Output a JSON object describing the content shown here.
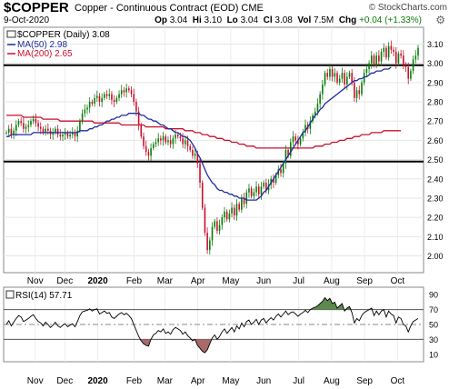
{
  "header": {
    "symbol": "$COPPER",
    "description": "Copper - Continuous Contract (EOD)",
    "exchange": "CME",
    "date": "9-Oct-2020",
    "brand": "© StockCharts.com",
    "open_label": "Op",
    "open": "3.04",
    "high_label": "Hi",
    "high": "3.10",
    "low_label": "Lo",
    "low": "3.04",
    "close_label": "Cl",
    "close": "3.08",
    "vol_label": "Vol",
    "vol": "7.5M",
    "chg_label": "Chg",
    "chg": "+0.04 (+1.33%)",
    "up_color": "#0a7d0a",
    "down_color": "#c8102e",
    "gear_icon": "gear-icon"
  },
  "legend": {
    "price": "$COPPER (Daily) 3.08",
    "ma50": "MA(50) 2.98",
    "ma200": "MA(200) 2.65"
  },
  "rsi_legend": "RSI(14) 57.71",
  "chart_data": [
    {
      "type": "candlestick",
      "series_name": "$COPPER (Daily)",
      "x_labels": [
        "Nov",
        "Dec",
        "2020",
        "Feb",
        "Mar",
        "Apr",
        "May",
        "Jun",
        "Jul",
        "Aug",
        "Sep",
        "Oct"
      ],
      "y_ticks": [
        2.0,
        2.1,
        2.2,
        2.3,
        2.4,
        2.5,
        2.6,
        2.7,
        2.8,
        2.9,
        3.0,
        3.1
      ],
      "ylim": [
        1.96,
        3.14
      ],
      "horizontal_lines": [
        2.49,
        2.99
      ],
      "close": [
        2.64,
        2.66,
        2.63,
        2.65,
        2.68,
        2.7,
        2.69,
        2.66,
        2.67,
        2.68,
        2.7,
        2.71,
        2.69,
        2.67,
        2.66,
        2.64,
        2.66,
        2.65,
        2.63,
        2.64,
        2.66,
        2.63,
        2.62,
        2.63,
        2.64,
        2.62,
        2.63,
        2.64,
        2.62,
        2.65,
        2.7,
        2.74,
        2.76,
        2.77,
        2.8,
        2.79,
        2.82,
        2.83,
        2.8,
        2.82,
        2.84,
        2.83,
        2.84,
        2.81,
        2.8,
        2.82,
        2.84,
        2.86,
        2.85,
        2.87,
        2.86,
        2.84,
        2.8,
        2.75,
        2.68,
        2.62,
        2.57,
        2.54,
        2.52,
        2.56,
        2.58,
        2.59,
        2.61,
        2.6,
        2.62,
        2.59,
        2.6,
        2.58,
        2.61,
        2.63,
        2.62,
        2.61,
        2.58,
        2.6,
        2.57,
        2.55,
        2.52,
        2.53,
        2.48,
        2.38,
        2.25,
        2.12,
        2.03,
        2.08,
        2.15,
        2.18,
        2.13,
        2.16,
        2.2,
        2.23,
        2.19,
        2.22,
        2.25,
        2.21,
        2.27,
        2.24,
        2.3,
        2.27,
        2.33,
        2.35,
        2.31,
        2.33,
        2.36,
        2.32,
        2.36,
        2.38,
        2.34,
        2.37,
        2.4,
        2.38,
        2.42,
        2.45,
        2.43,
        2.48,
        2.55,
        2.52,
        2.59,
        2.62,
        2.6,
        2.58,
        2.61,
        2.64,
        2.68,
        2.66,
        2.7,
        2.73,
        2.75,
        2.79,
        2.84,
        2.89,
        2.95,
        2.93,
        2.97,
        2.93,
        2.95,
        2.9,
        2.92,
        2.95,
        2.89,
        2.93,
        2.95,
        2.9,
        2.82,
        2.86,
        2.84,
        2.9,
        2.95,
        2.97,
        3.0,
        3.04,
        2.99,
        3.04,
        3.01,
        3.06,
        3.08,
        3.03,
        3.09,
        3.07,
        3.06,
        3.0,
        3.05,
        3.04,
        2.99,
        2.98,
        2.92,
        2.96,
        3.02,
        3.04,
        3.08
      ],
      "ma50": [
        2.62,
        2.62,
        2.63,
        2.63,
        2.63,
        2.63,
        2.63,
        2.63,
        2.63,
        2.63,
        2.63,
        2.64,
        2.64,
        2.64,
        2.64,
        2.64,
        2.64,
        2.64,
        2.64,
        2.64,
        2.64,
        2.64,
        2.64,
        2.64,
        2.64,
        2.64,
        2.64,
        2.64,
        2.64,
        2.64,
        2.65,
        2.65,
        2.65,
        2.65,
        2.66,
        2.66,
        2.67,
        2.67,
        2.68,
        2.68,
        2.69,
        2.7,
        2.7,
        2.71,
        2.71,
        2.72,
        2.72,
        2.73,
        2.73,
        2.73,
        2.74,
        2.74,
        2.74,
        2.74,
        2.74,
        2.73,
        2.73,
        2.72,
        2.71,
        2.71,
        2.7,
        2.7,
        2.69,
        2.68,
        2.68,
        2.67,
        2.66,
        2.66,
        2.65,
        2.64,
        2.64,
        2.63,
        2.62,
        2.62,
        2.61,
        2.6,
        2.58,
        2.56,
        2.53,
        2.51,
        2.48,
        2.45,
        2.42,
        2.4,
        2.38,
        2.37,
        2.35,
        2.34,
        2.34,
        2.33,
        2.33,
        2.32,
        2.32,
        2.31,
        2.31,
        2.3,
        2.3,
        2.3,
        2.29,
        2.29,
        2.29,
        2.29,
        2.29,
        2.3,
        2.31,
        2.33,
        2.34,
        2.36,
        2.38,
        2.4,
        2.42,
        2.44,
        2.46,
        2.48,
        2.5,
        2.52,
        2.54,
        2.56,
        2.58,
        2.6,
        2.62,
        2.64,
        2.65,
        2.67,
        2.69,
        2.71,
        2.73,
        2.74,
        2.76,
        2.77,
        2.79,
        2.8,
        2.81,
        2.82,
        2.83,
        2.84,
        2.85,
        2.86,
        2.87,
        2.88,
        2.89,
        2.9,
        2.91,
        2.91,
        2.92,
        2.92,
        2.93,
        2.93,
        2.94,
        2.95,
        2.95,
        2.96,
        2.96,
        2.96,
        2.97,
        2.97,
        2.97,
        2.98
      ],
      "ma200": [
        2.73,
        2.73,
        2.73,
        2.73,
        2.73,
        2.73,
        2.73,
        2.72,
        2.72,
        2.72,
        2.72,
        2.72,
        2.72,
        2.72,
        2.72,
        2.71,
        2.71,
        2.71,
        2.71,
        2.71,
        2.71,
        2.71,
        2.7,
        2.7,
        2.7,
        2.7,
        2.7,
        2.7,
        2.7,
        2.7,
        2.7,
        2.7,
        2.7,
        2.7,
        2.7,
        2.7,
        2.69,
        2.69,
        2.69,
        2.69,
        2.69,
        2.69,
        2.69,
        2.69,
        2.69,
        2.69,
        2.69,
        2.68,
        2.68,
        2.68,
        2.68,
        2.68,
        2.68,
        2.68,
        2.68,
        2.68,
        2.68,
        2.67,
        2.67,
        2.67,
        2.67,
        2.67,
        2.67,
        2.67,
        2.67,
        2.66,
        2.66,
        2.66,
        2.66,
        2.66,
        2.66,
        2.66,
        2.66,
        2.65,
        2.65,
        2.65,
        2.65,
        2.64,
        2.64,
        2.64,
        2.63,
        2.63,
        2.63,
        2.62,
        2.62,
        2.62,
        2.61,
        2.61,
        2.61,
        2.6,
        2.6,
        2.6,
        2.59,
        2.59,
        2.59,
        2.58,
        2.58,
        2.58,
        2.57,
        2.57,
        2.57,
        2.57,
        2.56,
        2.56,
        2.56,
        2.56,
        2.56,
        2.56,
        2.56,
        2.56,
        2.56,
        2.56,
        2.56,
        2.56,
        2.56,
        2.56,
        2.56,
        2.56,
        2.56,
        2.56,
        2.56,
        2.56,
        2.56,
        2.56,
        2.56,
        2.56,
        2.57,
        2.57,
        2.57,
        2.57,
        2.58,
        2.58,
        2.58,
        2.59,
        2.59,
        2.59,
        2.6,
        2.6,
        2.6,
        2.61,
        2.61,
        2.61,
        2.62,
        2.62,
        2.62,
        2.63,
        2.63,
        2.63,
        2.63,
        2.64,
        2.64,
        2.64,
        2.64,
        2.64,
        2.65,
        2.65,
        2.65,
        2.65,
        2.65,
        2.65,
        2.65,
        2.65
      ]
    },
    {
      "type": "line",
      "series_name": "RSI(14)",
      "x_labels": [
        "Nov",
        "Dec",
        "2020",
        "Feb",
        "Mar",
        "Apr",
        "May",
        "Jun",
        "Jul",
        "Aug",
        "Sep",
        "Oct"
      ],
      "y_ticks": [
        10,
        30,
        50,
        70,
        90
      ],
      "ylim": [
        0,
        100
      ],
      "thresholds": [
        30,
        50,
        70
      ],
      "values": [
        50,
        55,
        48,
        53,
        58,
        62,
        60,
        54,
        56,
        58,
        61,
        63,
        58,
        54,
        52,
        48,
        53,
        50,
        46,
        49,
        53,
        48,
        46,
        49,
        51,
        47,
        49,
        51,
        47,
        54,
        62,
        67,
        68,
        69,
        71,
        68,
        70,
        71,
        64,
        66,
        68,
        65,
        66,
        60,
        58,
        61,
        64,
        66,
        63,
        65,
        62,
        58,
        50,
        42,
        34,
        28,
        24,
        22,
        21,
        30,
        36,
        38,
        42,
        40,
        44,
        38,
        40,
        37,
        43,
        46,
        44,
        42,
        37,
        40,
        35,
        32,
        28,
        30,
        22,
        18,
        14,
        12,
        16,
        24,
        32,
        36,
        30,
        34,
        40,
        44,
        38,
        42,
        46,
        40,
        48,
        44,
        52,
        47,
        54,
        56,
        50,
        53,
        57,
        50,
        56,
        58,
        52,
        56,
        59,
        56,
        61,
        64,
        60,
        64,
        68,
        63,
        66,
        67,
        64,
        61,
        64,
        66,
        69,
        66,
        70,
        72,
        73,
        75,
        78,
        81,
        86,
        82,
        85,
        78,
        80,
        72,
        75,
        78,
        68,
        72,
        74,
        66,
        52,
        58,
        55,
        62,
        66,
        68,
        70,
        72,
        62,
        68,
        63,
        68,
        70,
        60,
        68,
        64,
        62,
        52,
        60,
        58,
        50,
        48,
        40,
        48,
        54,
        56,
        58
      ]
    }
  ]
}
